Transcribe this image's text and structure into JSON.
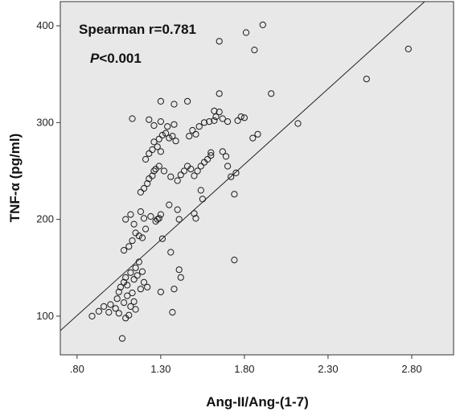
{
  "chart_data": {
    "type": "scatter",
    "xlabel": "Ang-II/Ang-(1-7)",
    "ylabel": "TNF-α (pg/ml)",
    "xlim": [
      0.7,
      3.05
    ],
    "ylim": [
      60,
      425
    ],
    "xticks": [
      0.8,
      1.3,
      1.8,
      2.3,
      2.8
    ],
    "xtick_labels": [
      ".80",
      "1.30",
      "1.80",
      "2.30",
      "2.80"
    ],
    "yticks": [
      100,
      200,
      300,
      400
    ],
    "ytick_labels": [
      "100",
      "200",
      "300",
      "400"
    ],
    "grid": false,
    "background": "#e8e8e8",
    "annotations": {
      "correlation": "Spearman r=0.781",
      "p_prefix": "P",
      "p_value": "<0.001"
    },
    "fit_line": {
      "x": [
        0.7,
        3.05
      ],
      "y": [
        85,
        452
      ]
    },
    "points": [
      [
        0.89,
        100
      ],
      [
        0.93,
        105
      ],
      [
        0.96,
        110
      ],
      [
        0.99,
        104
      ],
      [
        1.0,
        112
      ],
      [
        1.03,
        108
      ],
      [
        1.04,
        118
      ],
      [
        1.05,
        125
      ],
      [
        1.05,
        103
      ],
      [
        1.07,
        77
      ],
      [
        1.08,
        114
      ],
      [
        1.09,
        98
      ],
      [
        1.1,
        121
      ],
      [
        1.11,
        101
      ],
      [
        1.12,
        110
      ],
      [
        1.13,
        124
      ],
      [
        1.14,
        115
      ],
      [
        1.15,
        107
      ],
      [
        1.06,
        130
      ],
      [
        1.08,
        135
      ],
      [
        1.09,
        140
      ],
      [
        1.1,
        132
      ],
      [
        1.12,
        145
      ],
      [
        1.14,
        138
      ],
      [
        1.16,
        142
      ],
      [
        1.15,
        150
      ],
      [
        1.17,
        156
      ],
      [
        1.19,
        146
      ],
      [
        1.18,
        128
      ],
      [
        1.2,
        135
      ],
      [
        1.22,
        130
      ],
      [
        1.08,
        168
      ],
      [
        1.11,
        172
      ],
      [
        1.13,
        178
      ],
      [
        1.15,
        186
      ],
      [
        1.17,
        183
      ],
      [
        1.19,
        181
      ],
      [
        1.21,
        190
      ],
      [
        1.09,
        200
      ],
      [
        1.12,
        205
      ],
      [
        1.14,
        195
      ],
      [
        1.18,
        208
      ],
      [
        1.2,
        201
      ],
      [
        1.24,
        203
      ],
      [
        1.27,
        198
      ],
      [
        1.28,
        200
      ],
      [
        1.29,
        201
      ],
      [
        1.3,
        205
      ],
      [
        1.18,
        228
      ],
      [
        1.2,
        232
      ],
      [
        1.22,
        237
      ],
      [
        1.23,
        242
      ],
      [
        1.25,
        245
      ],
      [
        1.26,
        250
      ],
      [
        1.27,
        252
      ],
      [
        1.29,
        255
      ],
      [
        1.21,
        262
      ],
      [
        1.23,
        268
      ],
      [
        1.25,
        272
      ],
      [
        1.28,
        275
      ],
      [
        1.3,
        270
      ],
      [
        1.26,
        280
      ],
      [
        1.29,
        283
      ],
      [
        1.31,
        287
      ],
      [
        1.33,
        289
      ],
      [
        1.35,
        284
      ],
      [
        1.37,
        286
      ],
      [
        1.39,
        281
      ],
      [
        1.26,
        297
      ],
      [
        1.3,
        301
      ],
      [
        1.34,
        296
      ],
      [
        1.38,
        298
      ],
      [
        1.23,
        303
      ],
      [
        1.13,
        304
      ],
      [
        1.3,
        322
      ],
      [
        1.38,
        319
      ],
      [
        1.46,
        322
      ],
      [
        1.32,
        250
      ],
      [
        1.36,
        244
      ],
      [
        1.4,
        240
      ],
      [
        1.42,
        246
      ],
      [
        1.44,
        250
      ],
      [
        1.46,
        255
      ],
      [
        1.48,
        252
      ],
      [
        1.5,
        245
      ],
      [
        1.52,
        250
      ],
      [
        1.54,
        255
      ],
      [
        1.56,
        259
      ],
      [
        1.58,
        262
      ],
      [
        1.6,
        266
      ],
      [
        1.47,
        286
      ],
      [
        1.49,
        292
      ],
      [
        1.51,
        288
      ],
      [
        1.53,
        296
      ],
      [
        1.56,
        300
      ],
      [
        1.59,
        301
      ],
      [
        1.62,
        302
      ],
      [
        1.63,
        306
      ],
      [
        1.65,
        311
      ],
      [
        1.67,
        304
      ],
      [
        1.7,
        301
      ],
      [
        1.62,
        312
      ],
      [
        1.65,
        330
      ],
      [
        1.76,
        302
      ],
      [
        1.78,
        306
      ],
      [
        1.8,
        305
      ],
      [
        1.85,
        284
      ],
      [
        1.88,
        288
      ],
      [
        1.96,
        330
      ],
      [
        1.67,
        270
      ],
      [
        1.69,
        265
      ],
      [
        1.7,
        255
      ],
      [
        1.72,
        244
      ],
      [
        1.74,
        226
      ],
      [
        1.75,
        248
      ],
      [
        1.6,
        269
      ],
      [
        1.54,
        230
      ],
      [
        1.55,
        221
      ],
      [
        1.5,
        206
      ],
      [
        1.51,
        201
      ],
      [
        1.4,
        210
      ],
      [
        1.41,
        200
      ],
      [
        1.35,
        215
      ],
      [
        1.31,
        180
      ],
      [
        1.36,
        166
      ],
      [
        1.41,
        148
      ],
      [
        1.42,
        140
      ],
      [
        1.38,
        128
      ],
      [
        1.3,
        125
      ],
      [
        1.37,
        104
      ],
      [
        1.74,
        158
      ],
      [
        1.65,
        384
      ],
      [
        1.81,
        393
      ],
      [
        1.86,
        375
      ],
      [
        1.91,
        401
      ],
      [
        2.12,
        299
      ],
      [
        2.53,
        345
      ],
      [
        2.78,
        376
      ]
    ]
  }
}
